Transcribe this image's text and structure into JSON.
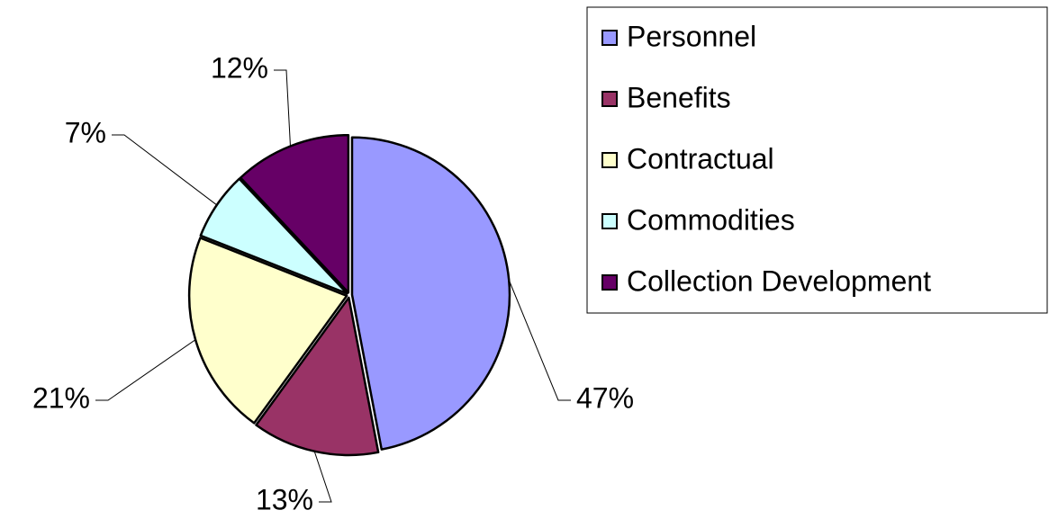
{
  "chart_data": {
    "type": "pie",
    "categories": [
      "Personnel",
      "Benefits",
      "Contractual",
      "Commodities",
      "Collection Development"
    ],
    "values": [
      47,
      13,
      21,
      7,
      12
    ],
    "value_labels": [
      "47%",
      "13%",
      "21%",
      "7%",
      "12%"
    ],
    "colors": [
      "#9999ff",
      "#993366",
      "#ffffcc",
      "#ccffff",
      "#660066"
    ],
    "legend": "right"
  }
}
